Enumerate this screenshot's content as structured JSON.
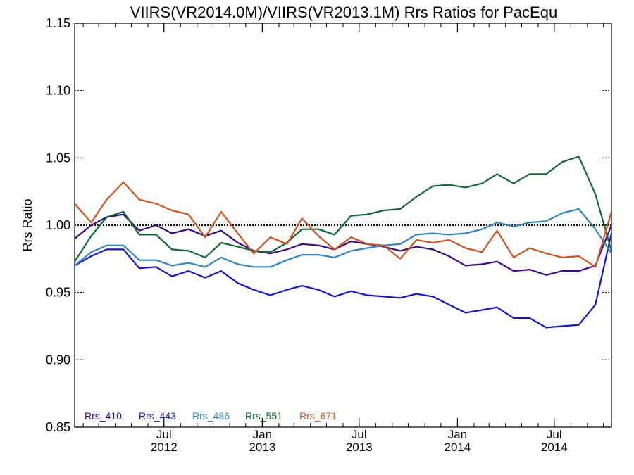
{
  "colors": {
    "Rrs_410": "#3b0a8c",
    "Rrs_443": "#1111f0",
    "Rrs_486": "#2b86c8",
    "Rrs_551": "#0c6a34",
    "Rrs_671": "#d8501a",
    "reference_line": "#000000"
  },
  "chart_data": {
    "type": "line",
    "title": "VIIRS(VR2014.0M)/VIIRS(VR2013.1M)  Rrs Ratios for PacEqu",
    "xlabel": "",
    "ylabel": "Rrs Ratio",
    "x_type": "date",
    "xlim": [
      "2012-01-16",
      "2014-10-16"
    ],
    "ylim": [
      0.85,
      1.15
    ],
    "yticks": [
      "0.85",
      "0.90",
      "0.95",
      "1.00",
      "1.05",
      "1.10",
      "1.15"
    ],
    "xticks": [
      {
        "date": "2012-07-01",
        "month": "Jul",
        "year": "2012"
      },
      {
        "date": "2013-01-01",
        "month": "Jan",
        "year": "2013"
      },
      {
        "date": "2013-07-01",
        "month": "Jul",
        "year": "2013"
      },
      {
        "date": "2014-01-01",
        "month": "Jan",
        "year": "2014"
      },
      {
        "date": "2014-07-01",
        "month": "Jul",
        "year": "2014"
      }
    ],
    "reference_line": 1.0,
    "grid": false,
    "legend_position": "bottom-left",
    "x": [
      "2012-01-16",
      "2012-02-16",
      "2012-03-16",
      "2012-04-16",
      "2012-05-16",
      "2012-06-16",
      "2012-07-16",
      "2012-08-16",
      "2012-09-16",
      "2012-10-16",
      "2012-11-16",
      "2012-12-16",
      "2013-01-16",
      "2013-02-16",
      "2013-03-16",
      "2013-04-16",
      "2013-05-16",
      "2013-06-16",
      "2013-07-16",
      "2013-08-16",
      "2013-09-16",
      "2013-10-16",
      "2013-11-16",
      "2013-12-16",
      "2014-01-16",
      "2014-02-16",
      "2014-03-16",
      "2014-04-16",
      "2014-05-16",
      "2014-06-16",
      "2014-07-16",
      "2014-08-16",
      "2014-09-16",
      "2014-10-16"
    ],
    "series": [
      {
        "name": "Rrs_410",
        "values": [
          0.99,
          1.0,
          1.006,
          1.008,
          0.996,
          1.0,
          0.994,
          0.997,
          0.992,
          0.996,
          0.987,
          0.981,
          0.979,
          0.982,
          0.986,
          0.985,
          0.982,
          0.988,
          0.986,
          0.984,
          0.981,
          0.984,
          0.982,
          0.977,
          0.97,
          0.971,
          0.973,
          0.966,
          0.967,
          0.963,
          0.966,
          0.966,
          0.97,
          1.0
        ]
      },
      {
        "name": "Rrs_443",
        "values": [
          0.97,
          0.977,
          0.982,
          0.982,
          0.968,
          0.969,
          0.962,
          0.966,
          0.961,
          0.966,
          0.957,
          0.952,
          0.948,
          0.952,
          0.955,
          0.952,
          0.947,
          0.951,
          0.948,
          0.947,
          0.946,
          0.949,
          0.947,
          0.941,
          0.935,
          0.937,
          0.939,
          0.931,
          0.931,
          0.924,
          0.925,
          0.926,
          0.941,
          0.994
        ]
      },
      {
        "name": "Rrs_486",
        "values": [
          0.97,
          0.98,
          0.985,
          0.985,
          0.974,
          0.974,
          0.97,
          0.972,
          0.969,
          0.976,
          0.971,
          0.969,
          0.969,
          0.974,
          0.978,
          0.978,
          0.976,
          0.981,
          0.983,
          0.985,
          0.986,
          0.993,
          0.994,
          0.993,
          0.994,
          0.997,
          1.002,
          0.999,
          1.002,
          1.003,
          1.009,
          1.012,
          0.997,
          0.979
        ]
      },
      {
        "name": "Rrs_551",
        "values": [
          0.973,
          0.992,
          1.006,
          1.01,
          0.993,
          0.993,
          0.982,
          0.981,
          0.976,
          0.987,
          0.984,
          0.981,
          0.98,
          0.987,
          0.997,
          0.997,
          0.993,
          1.007,
          1.008,
          1.011,
          1.012,
          1.021,
          1.029,
          1.03,
          1.028,
          1.031,
          1.038,
          1.031,
          1.038,
          1.038,
          1.047,
          1.051,
          1.023,
          0.981
        ]
      },
      {
        "name": "Rrs_671",
        "values": [
          1.016,
          1.002,
          1.019,
          1.032,
          1.019,
          1.016,
          1.011,
          1.008,
          0.991,
          1.01,
          0.994,
          0.979,
          0.991,
          0.986,
          1.005,
          0.992,
          0.982,
          0.991,
          0.986,
          0.985,
          0.975,
          0.989,
          0.987,
          0.989,
          0.983,
          0.98,
          0.996,
          0.976,
          0.983,
          0.979,
          0.976,
          0.977,
          0.969,
          1.01
        ]
      }
    ]
  }
}
